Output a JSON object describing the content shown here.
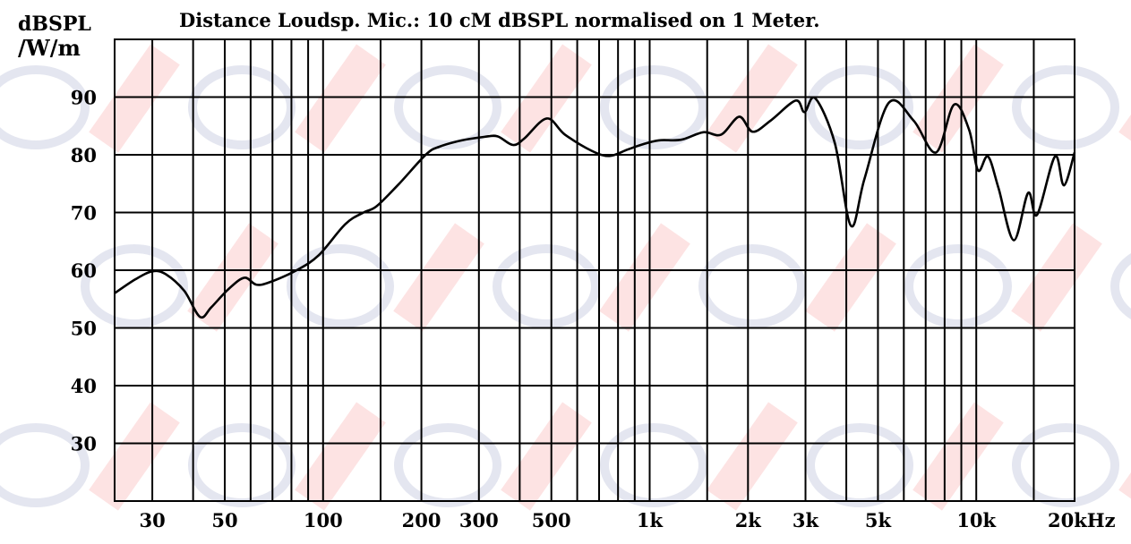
{
  "chart_data": {
    "type": "line",
    "title": "Distance Loudsp. Mic.: 10 cM dBSPL normalised on 1 Meter.",
    "ylabel_line1": "dBSPL",
    "ylabel_line2": "/W/m",
    "xscale": "log",
    "xlim": [
      23,
      20000
    ],
    "ylim": [
      20,
      100
    ],
    "grid": true,
    "x_gridlines": [
      30,
      40,
      50,
      60,
      70,
      80,
      90,
      100,
      150,
      200,
      300,
      400,
      500,
      600,
      700,
      800,
      900,
      1000,
      1500,
      2000,
      3000,
      4000,
      5000,
      6000,
      7000,
      8000,
      9000,
      10000,
      15000,
      20000
    ],
    "x_ticks": [
      {
        "value": 30,
        "label": "30"
      },
      {
        "value": 50,
        "label": "50"
      },
      {
        "value": 100,
        "label": "100"
      },
      {
        "value": 200,
        "label": "200"
      },
      {
        "value": 300,
        "label": "300"
      },
      {
        "value": 500,
        "label": "500"
      },
      {
        "value": 1000,
        "label": "1k"
      },
      {
        "value": 2000,
        "label": "2k"
      },
      {
        "value": 3000,
        "label": "3k"
      },
      {
        "value": 5000,
        "label": "5k"
      },
      {
        "value": 10000,
        "label": "10k"
      },
      {
        "value": 20000,
        "label": "20kHz"
      }
    ],
    "y_ticks": [
      {
        "value": 90,
        "label": "90"
      },
      {
        "value": 80,
        "label": "80"
      },
      {
        "value": 70,
        "label": "70"
      },
      {
        "value": 60,
        "label": "60"
      },
      {
        "value": 50,
        "label": "50"
      },
      {
        "value": 40,
        "label": "40"
      },
      {
        "value": 30,
        "label": "30"
      }
    ],
    "y_gridlines": [
      30,
      40,
      50,
      60,
      70,
      80,
      90
    ],
    "line_color": "#000000",
    "series": [
      {
        "x": [
          23,
          26.6,
          30,
          33,
          37.6,
          42,
          45.5,
          51.5,
          57.4,
          62.4,
          68.5,
          83,
          97,
          117,
          133,
          146,
          171,
          207,
          227,
          266,
          311,
          342,
          381,
          413,
          484,
          550,
          664,
          753,
          855,
          939,
          1065,
          1247,
          1459,
          1656,
          1880,
          2065,
          2344,
          2799,
          2979,
          3213,
          3690,
          4131,
          4545,
          5395,
          6430,
          7530,
          8550,
          9510,
          10120,
          10860,
          11700,
          13030,
          14410,
          15350,
          17420,
          18550,
          20000
        ],
        "y": [
          56,
          58.4,
          59.8,
          59.3,
          56.4,
          51.9,
          53.6,
          56.8,
          58.7,
          57.5,
          57.9,
          60,
          62.6,
          68,
          70,
          71.1,
          75,
          80.1,
          81.4,
          82.5,
          83.1,
          83.2,
          81.7,
          82.8,
          86.3,
          83.5,
          80.7,
          79.8,
          80.9,
          81.7,
          82.5,
          82.6,
          83.9,
          83.5,
          86.6,
          84,
          85.9,
          89.4,
          87.4,
          89.8,
          82,
          67.7,
          75.8,
          89,
          85.9,
          80.4,
          88.7,
          84.3,
          77.3,
          79.7,
          74.2,
          65.2,
          73.4,
          69.6,
          79.7,
          74.7,
          80.4
        ]
      }
    ]
  }
}
